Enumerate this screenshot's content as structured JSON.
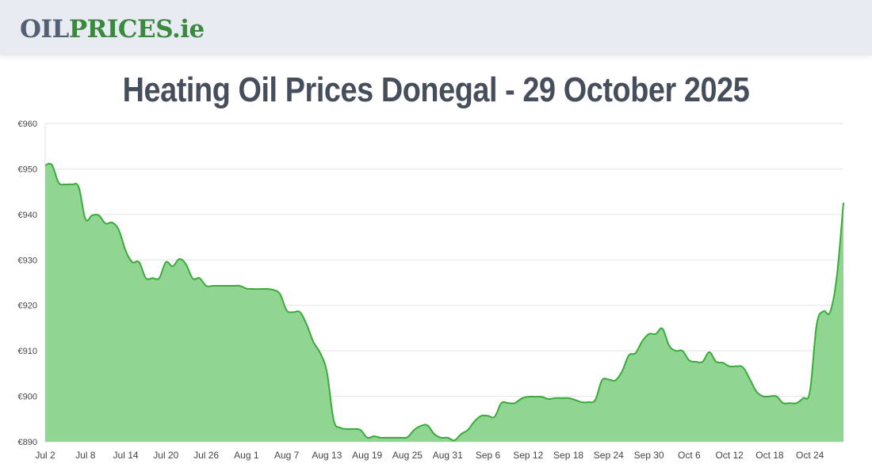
{
  "header": {
    "logo_part1": "OIL",
    "logo_part2": "PRICES.ie"
  },
  "page_title": "Heating Oil Prices Donegal - 29 October 2025",
  "colors": {
    "line": "#3aaa3a",
    "fill": "#90d692",
    "grid": "#e3e3e3",
    "title": "#464e5c",
    "logo_gray": "#535f73",
    "logo_green": "#3a8a3e"
  },
  "chart_data": {
    "type": "area",
    "title": "Heating Oil Prices Donegal - 29 October 2025",
    "xlabel": "",
    "ylabel": "",
    "ylim": [
      890,
      960
    ],
    "yticks": [
      "€960",
      "€950",
      "€940",
      "€930",
      "€920",
      "€910",
      "€900",
      "€890"
    ],
    "ytick_values": [
      960,
      950,
      940,
      930,
      920,
      910,
      900,
      890
    ],
    "xticks": [
      "Jul 2",
      "Jul 8",
      "Jul 14",
      "Jul 20",
      "Jul 26",
      "Aug 1",
      "Aug 7",
      "Aug 13",
      "Aug 19",
      "Aug 25",
      "Aug 31",
      "Sep 6",
      "Sep 12",
      "Sep 18",
      "Sep 24",
      "Sep 30",
      "Oct 6",
      "Oct 12",
      "Oct 18",
      "Oct 24"
    ],
    "xtick_index": [
      0,
      6,
      12,
      18,
      24,
      30,
      36,
      42,
      48,
      54,
      60,
      66,
      72,
      78,
      84,
      90,
      96,
      102,
      108,
      114
    ],
    "grid": true,
    "legend": "none",
    "x_start": "Jul 2",
    "x_end": "Oct 29",
    "series": [
      {
        "name": "Heating Oil Price (€)",
        "values": [
          950.8,
          950.9,
          947.0,
          946.6,
          946.6,
          946.0,
          939.0,
          939.8,
          939.8,
          938.0,
          938.2,
          936.5,
          932.0,
          929.5,
          929.5,
          926.0,
          926.0,
          926.0,
          929.5,
          928.6,
          930.2,
          929.0,
          925.9,
          926.0,
          924.3,
          924.3,
          924.3,
          924.3,
          924.3,
          924.3,
          923.7,
          923.6,
          923.6,
          923.6,
          923.4,
          922.5,
          918.9,
          918.5,
          918.5,
          915.7,
          911.9,
          909.5,
          905.3,
          894.8,
          893.1,
          892.8,
          892.8,
          892.6,
          890.9,
          891.2,
          890.9,
          890.9,
          890.9,
          890.9,
          891.0,
          892.6,
          893.5,
          893.6,
          891.7,
          890.9,
          890.9,
          890.3,
          891.7,
          892.6,
          894.5,
          895.7,
          895.7,
          895.5,
          898.5,
          898.5,
          898.5,
          899.5,
          899.9,
          899.9,
          899.9,
          899.4,
          899.6,
          899.6,
          899.6,
          899.2,
          898.7,
          898.7,
          899.2,
          903.5,
          903.7,
          903.5,
          905.5,
          909.0,
          909.5,
          912.1,
          913.7,
          913.7,
          914.9,
          911.2,
          910.0,
          910.0,
          907.9,
          907.6,
          907.6,
          909.7,
          907.6,
          907.4,
          906.6,
          906.6,
          906.4,
          903.9,
          901.1,
          900.0,
          900.0,
          900.0,
          898.5,
          898.5,
          898.5,
          899.6,
          901.1,
          915.7,
          918.7,
          918.5,
          926.2,
          942.6
        ]
      }
    ]
  }
}
